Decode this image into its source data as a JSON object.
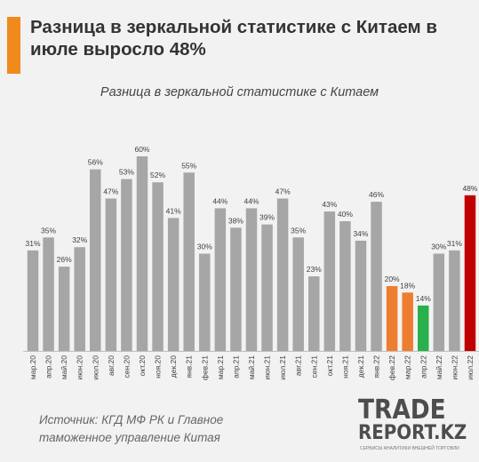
{
  "header": {
    "headline": "Разница в зеркальной статистике с Китаем в июле выросло 48%"
  },
  "colors": {
    "accent": "#f08a1c",
    "bar_default": "#a6a6a6",
    "bar_orange": "#ed7d31",
    "bar_green": "#27b04c",
    "bar_red": "#c00000"
  },
  "chart_data": {
    "type": "bar",
    "title": "Разница в зеркальной статистике с Китаем",
    "categories": [
      "мар.20",
      "апр.20",
      "май.20",
      "июн.20",
      "июл.20",
      "авг.20",
      "сен.20",
      "окт.20",
      "ноя.20",
      "дек.20",
      "янв.21",
      "фев.21",
      "мар.21",
      "апр.21",
      "май.21",
      "июн.21",
      "июл.21",
      "авг.21",
      "сен.21",
      "окт.21",
      "ноя.21",
      "дек.21",
      "янв.22",
      "фев.22",
      "мар.22",
      "апр.22",
      "май.22",
      "июн.22",
      "июл.22"
    ],
    "values": [
      31,
      35,
      26,
      32,
      56,
      47,
      53,
      60,
      52,
      41,
      55,
      30,
      44,
      38,
      44,
      39,
      47,
      35,
      23,
      43,
      40,
      34,
      46,
      20,
      18,
      14,
      30,
      31,
      48
    ],
    "value_labels": [
      "31%",
      "35%",
      "26%",
      "32%",
      "56%",
      "47%",
      "53%",
      "60%",
      "52%",
      "41%",
      "55%",
      "30%",
      "44%",
      "38%",
      "44%",
      "39%",
      "47%",
      "35%",
      "23%",
      "43%",
      "40%",
      "34%",
      "46%",
      "20%",
      "18%",
      "14%",
      "30%",
      "31%",
      "48%"
    ],
    "bar_colors": [
      "#a6a6a6",
      "#a6a6a6",
      "#a6a6a6",
      "#a6a6a6",
      "#a6a6a6",
      "#a6a6a6",
      "#a6a6a6",
      "#a6a6a6",
      "#a6a6a6",
      "#a6a6a6",
      "#a6a6a6",
      "#a6a6a6",
      "#a6a6a6",
      "#a6a6a6",
      "#a6a6a6",
      "#a6a6a6",
      "#a6a6a6",
      "#a6a6a6",
      "#a6a6a6",
      "#a6a6a6",
      "#a6a6a6",
      "#a6a6a6",
      "#a6a6a6",
      "#ed7d31",
      "#ed7d31",
      "#27b04c",
      "#a6a6a6",
      "#a6a6a6",
      "#c00000"
    ],
    "ylim": [
      0,
      62
    ],
    "grid": false,
    "legend": "none"
  },
  "footer": {
    "source_line1": "Источник: КГД МФ РК и Главное",
    "source_line2": "таможенное управление Китая",
    "logo_line1": "TRADE",
    "logo_line2": "REPORT.KZ",
    "logo_tagline": "СЕРВИСЫ АНАЛИТИКИ ВНЕШНЕЙ ТОРГОВЛИ"
  }
}
